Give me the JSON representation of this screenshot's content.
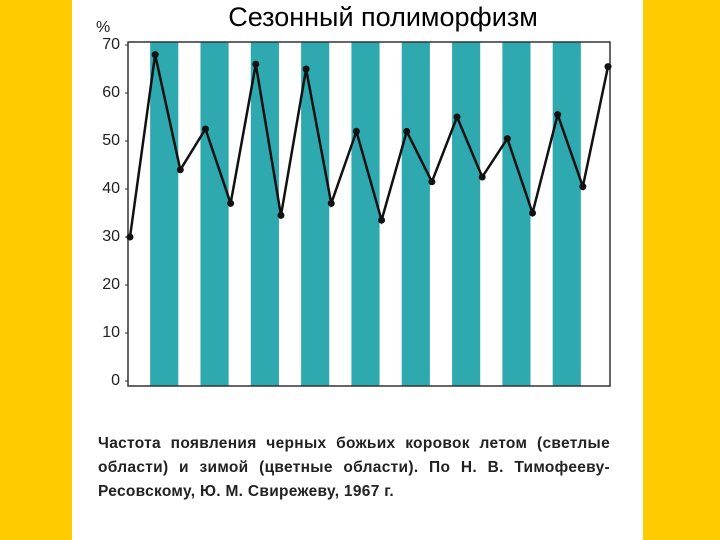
{
  "title": "Сезонный полиморфизм",
  "chart_data": {
    "type": "line",
    "y_label": "%",
    "categories": [
      null,
      null,
      null,
      null,
      null,
      null,
      null,
      null,
      null,
      null,
      null,
      null,
      null,
      null,
      null,
      null,
      null,
      null,
      null,
      null
    ],
    "series": [
      {
        "color": "#111111",
        "values": [
          30,
          68,
          44,
          52.5,
          37,
          66,
          34.5,
          65,
          37,
          52,
          33.5,
          52,
          41.5,
          55,
          42.5,
          50.5,
          35,
          55.5,
          40.5,
          65.5
        ]
      }
    ],
    "band_color": "#2fa9b0",
    "ylim": [
      0,
      70
    ],
    "yticks": [
      0,
      10,
      20,
      30,
      40,
      50,
      60,
      70
    ],
    "grid": false
  },
  "caption": "Частота появления черных божьих коровок летом (светлые области) и зимой (цветные области). По Н. В. Тимофееву-Ресовскому, Ю. М. Свирежеву, 1967 г."
}
